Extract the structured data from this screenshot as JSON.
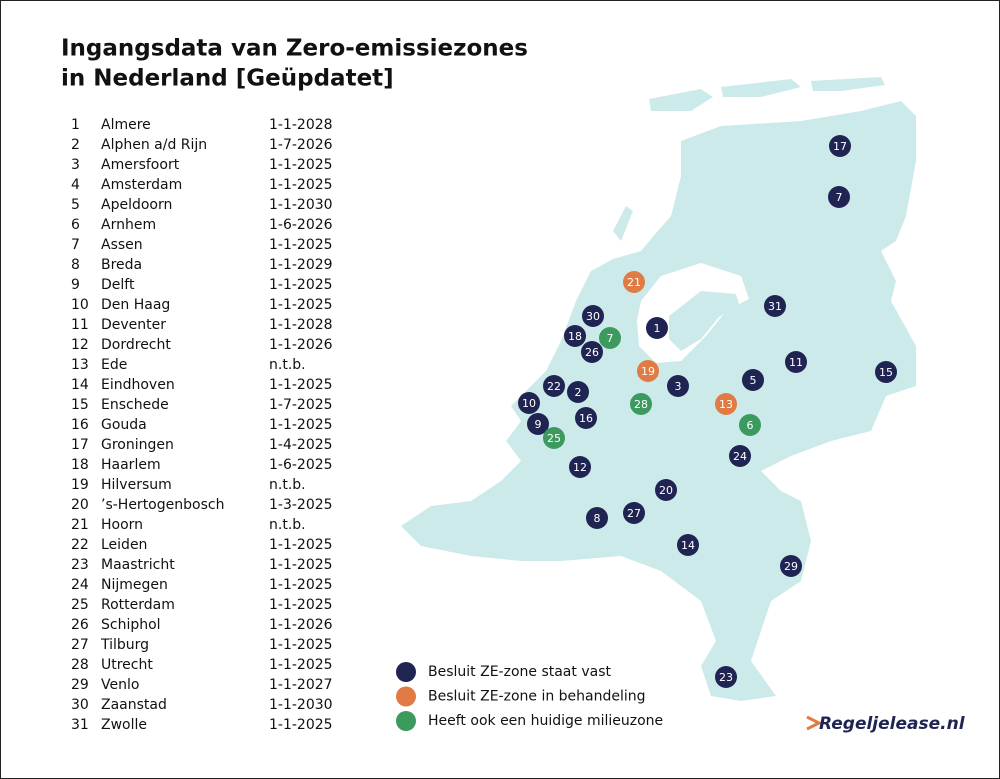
{
  "header": {
    "title_lines": [
      "Ingangsdata van Zero-emissiezones",
      "in Nederland [Geüpdatet]"
    ]
  },
  "table": {
    "rows": [
      [
        "1",
        "Almere",
        "1-1-2028"
      ],
      [
        "2",
        "Alphen a/d Rijn",
        "1-7-2026"
      ],
      [
        "3",
        "Amersfoort",
        "1-1-2025"
      ],
      [
        "4",
        "Amsterdam",
        "1-1-2025"
      ],
      [
        "5",
        "Apeldoorn",
        "1-1-2030"
      ],
      [
        "6",
        "Arnhem",
        "1-6-2026"
      ],
      [
        "7",
        "Assen",
        "1-1-2025"
      ],
      [
        "8",
        "Breda",
        "1-1-2029"
      ],
      [
        "9",
        "Delft",
        "1-1-2025"
      ],
      [
        "10",
        "Den Haag",
        "1-1-2025"
      ],
      [
        "11",
        "Deventer",
        "1-1-2028"
      ],
      [
        "12",
        "Dordrecht",
        "1-1-2026"
      ],
      [
        "13",
        "Ede",
        "n.t.b."
      ],
      [
        "14",
        "Eindhoven",
        "1-1-2025"
      ],
      [
        "15",
        "Enschede",
        "1-7-2025"
      ],
      [
        "16",
        "Gouda",
        "1-1-2025"
      ],
      [
        "17",
        "Groningen",
        "1-4-2025"
      ],
      [
        "18",
        "Haarlem",
        "1-6-2025"
      ],
      [
        "19",
        "Hilversum",
        "n.t.b."
      ],
      [
        "20",
        "’s-Hertogenbosch",
        "1-3-2025"
      ],
      [
        "21",
        "Hoorn",
        "n.t.b."
      ],
      [
        "22",
        "Leiden",
        "1-1-2025"
      ],
      [
        "23",
        "Maastricht",
        "1-1-2025"
      ],
      [
        "24",
        "Nijmegen",
        "1-1-2025"
      ],
      [
        "25",
        "Rotterdam",
        "1-1-2025"
      ],
      [
        "26",
        "Schiphol",
        "1-1-2026"
      ],
      [
        "27",
        "Tilburg",
        "1-1-2025"
      ],
      [
        "28",
        "Utrecht",
        "1-1-2025"
      ],
      [
        "29",
        "Venlo",
        "1-1-2027"
      ],
      [
        "30",
        "Zaanstad",
        "1-1-2030"
      ],
      [
        "31",
        "Zwolle",
        "1-1-2025"
      ]
    ]
  },
  "map": {
    "markers": [
      {
        "label": "17",
        "color": "#1f2452"
      },
      {
        "label": "7",
        "color": "#1f2452"
      },
      {
        "label": "21",
        "color": "#e07b45"
      },
      {
        "label": "31",
        "color": "#1f2452"
      },
      {
        "label": "30",
        "color": "#1f2452"
      },
      {
        "label": "1",
        "color": "#1f2452"
      },
      {
        "label": "7",
        "color": "#3c9a5f"
      },
      {
        "label": "18",
        "color": "#1f2452"
      },
      {
        "label": "26",
        "color": "#1f2452"
      },
      {
        "label": "11",
        "color": "#1f2452"
      },
      {
        "label": "19",
        "color": "#e07b45"
      },
      {
        "label": "15",
        "color": "#1f2452"
      },
      {
        "label": "5",
        "color": "#1f2452"
      },
      {
        "label": "3",
        "color": "#1f2452"
      },
      {
        "label": "22",
        "color": "#1f2452"
      },
      {
        "label": "2",
        "color": "#1f2452"
      },
      {
        "label": "10",
        "color": "#1f2452"
      },
      {
        "label": "28",
        "color": "#3c9a5f"
      },
      {
        "label": "13",
        "color": "#e07b45"
      },
      {
        "label": "16",
        "color": "#1f2452"
      },
      {
        "label": "9",
        "color": "#1f2452"
      },
      {
        "label": "6",
        "color": "#3c9a5f"
      },
      {
        "label": "25",
        "color": "#3c9a5f"
      },
      {
        "label": "24",
        "color": "#1f2452"
      },
      {
        "label": "12",
        "color": "#1f2452"
      },
      {
        "label": "20",
        "color": "#1f2452"
      },
      {
        "label": "27",
        "color": "#1f2452"
      },
      {
        "label": "8",
        "color": "#1f2452"
      },
      {
        "label": "14",
        "color": "#1f2452"
      },
      {
        "label": "29",
        "color": "#1f2452"
      },
      {
        "label": "23",
        "color": "#1f2452"
      }
    ]
  },
  "legend": {
    "items": [
      {
        "label": "Besluit ZE-zone staat vast",
        "color": "#1f2452"
      },
      {
        "label": "Besluit ZE-zone in behandeling",
        "color": "#e07b45"
      },
      {
        "label": "Heeft ook een huidige milieuzone",
        "color": "#3c9a5f"
      }
    ]
  },
  "logo": "Regeljelease.nl"
}
